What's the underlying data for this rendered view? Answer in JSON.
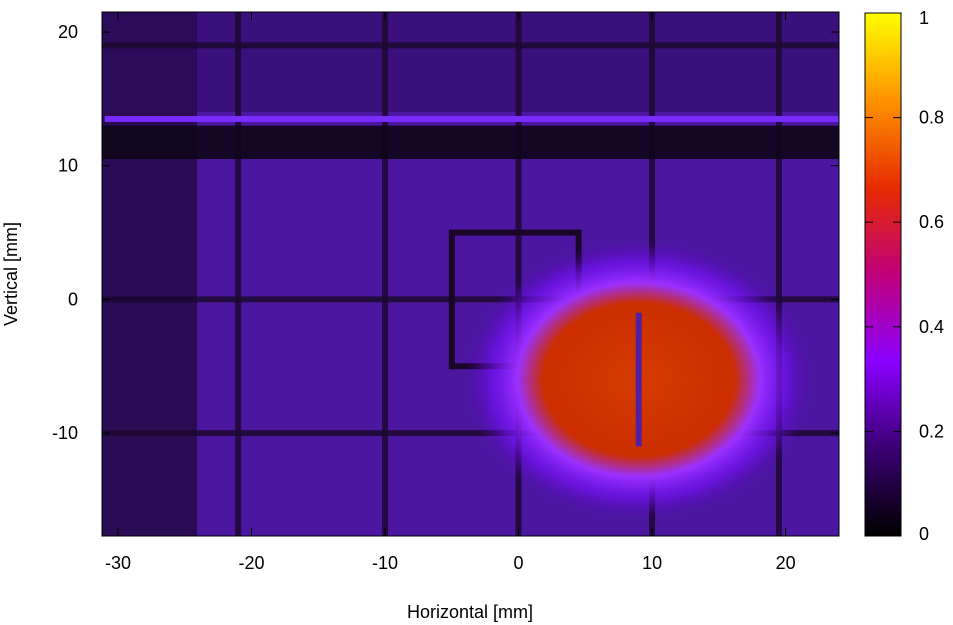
{
  "chart_data": {
    "type": "heatmap",
    "xlabel": "Horizontal [mm]",
    "ylabel": "Vertical [mm]",
    "xlim": [
      -31.2,
      24
    ],
    "ylim": [
      -17.7,
      21.5
    ],
    "xticks": [
      -30,
      -20,
      -10,
      0,
      10,
      20
    ],
    "yticks": [
      -10,
      0,
      10,
      20
    ],
    "colorbar": {
      "range": [
        0,
        1
      ],
      "ticks": [
        0,
        0.2,
        0.4,
        0.6,
        0.8,
        1
      ],
      "colormap": [
        "#000000",
        "#3a0073",
        "#8a00ff",
        "#c0007a",
        "#e62c00",
        "#ff9300",
        "#ffff00"
      ]
    },
    "background_level": 0.1,
    "vertical_grid_lines_x": [
      -21,
      -10,
      0,
      10,
      19.5
    ],
    "horizontal_grid_lines_y": [
      19,
      0,
      -10
    ],
    "dark_band_y": [
      10.5,
      13
    ],
    "bright_stripe": {
      "y": 13.5,
      "x": [
        -31,
        24
      ],
      "level": 0.25
    },
    "square_outline": {
      "x": [
        -5,
        4.5
      ],
      "y": [
        -5,
        5
      ]
    },
    "hot_spot": {
      "center": [
        9,
        -6
      ],
      "level": 0.5,
      "width": 10,
      "height": 8
    }
  }
}
